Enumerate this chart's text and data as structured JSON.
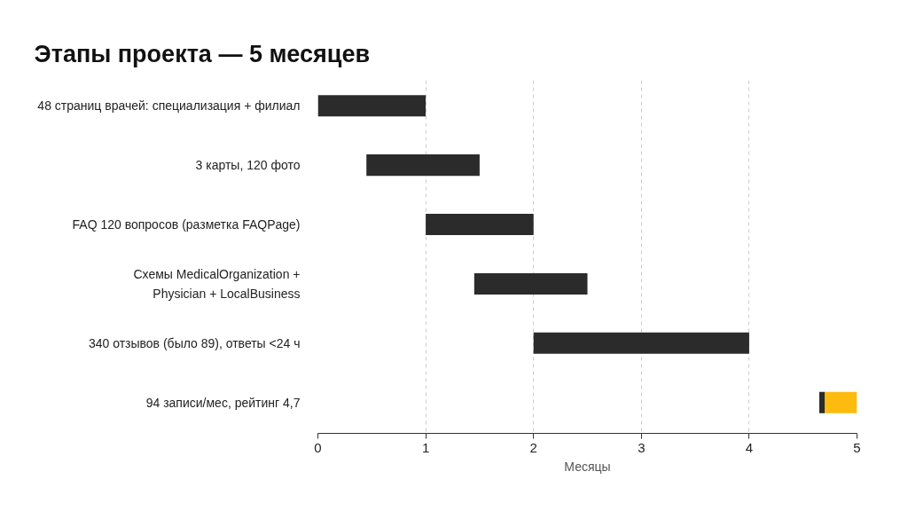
{
  "chart_data": {
    "type": "bar",
    "orientation": "horizontal",
    "title": "Этапы проекта — 5 месяцев",
    "xlabel": "Месяцы",
    "categories": [
      "48 страниц врачей: специализация + филиал",
      "3 карты, 120 фото",
      "FAQ 120 вопросов (разметка FAQPage)",
      "Схемы MedicalOrganization +\nPhysician + LocalBusiness",
      "340 отзывов (было 89), ответы <24 ч",
      "94 записи/мес, рейтинг 4,7"
    ],
    "series": [
      {
        "color": "#2b2b2b",
        "base": [
          0,
          0.45,
          1,
          1.45,
          2,
          4.65
        ],
        "values": [
          1,
          1.05,
          1,
          1.05,
          2,
          0.05
        ]
      },
      {
        "color": "#fdbb0f",
        "base": [
          null,
          null,
          null,
          null,
          null,
          4.7
        ],
        "values": [
          null,
          null,
          null,
          null,
          null,
          0.3
        ]
      }
    ],
    "xlim": [
      0,
      5
    ],
    "xticks": [
      0,
      1,
      2,
      3,
      4,
      5
    ],
    "grid": "x"
  }
}
